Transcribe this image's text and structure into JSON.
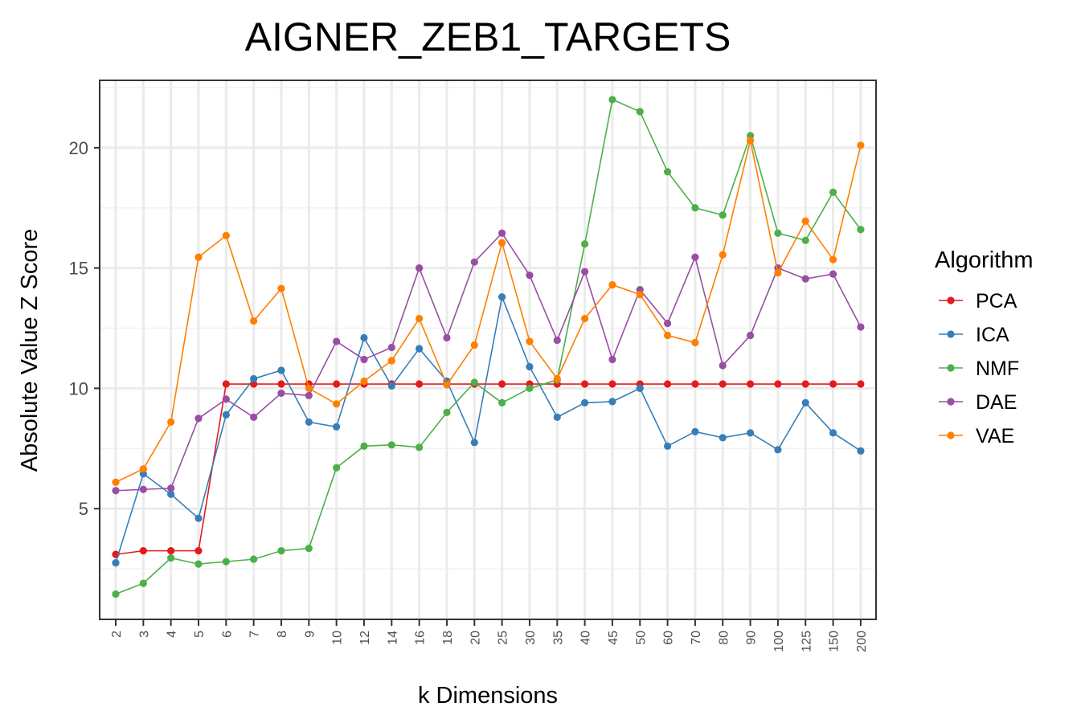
{
  "chart_data": {
    "type": "line",
    "title": "AIGNER_ZEB1_TARGETS",
    "xlabel": "k Dimensions",
    "ylabel": "Absolute Value Z Score",
    "categories": [
      "2",
      "3",
      "4",
      "5",
      "6",
      "7",
      "8",
      "9",
      "10",
      "12",
      "14",
      "16",
      "18",
      "20",
      "25",
      "30",
      "35",
      "40",
      "45",
      "50",
      "60",
      "70",
      "80",
      "90",
      "100",
      "125",
      "150",
      "200"
    ],
    "ylim": [
      0.4,
      22.8
    ],
    "yticks": [
      5,
      10,
      15,
      20
    ],
    "grid": true,
    "legend": {
      "title": "Algorithm",
      "placement": "right"
    },
    "series": [
      {
        "name": "PCA",
        "color": "#e41a1c",
        "values": [
          3.1,
          3.25,
          3.25,
          3.25,
          10.18,
          10.18,
          10.18,
          10.18,
          10.18,
          10.18,
          10.18,
          10.18,
          10.18,
          10.18,
          10.18,
          10.18,
          10.18,
          10.18,
          10.18,
          10.18,
          10.18,
          10.18,
          10.18,
          10.18,
          10.18,
          10.18,
          10.18,
          10.18
        ]
      },
      {
        "name": "ICA",
        "color": "#377eb8",
        "values": [
          2.75,
          6.45,
          5.6,
          4.6,
          8.9,
          10.4,
          10.75,
          8.6,
          8.4,
          12.1,
          10.1,
          11.65,
          10.3,
          7.75,
          13.8,
          10.9,
          8.8,
          9.4,
          9.45,
          10.0,
          7.6,
          8.2,
          7.95,
          8.15,
          7.45,
          9.4,
          8.15,
          7.4
        ]
      },
      {
        "name": "NMF",
        "color": "#4daf4a",
        "values": [
          1.45,
          1.9,
          2.95,
          2.7,
          2.8,
          2.9,
          3.25,
          3.35,
          6.7,
          7.6,
          7.65,
          7.55,
          9.0,
          10.25,
          9.4,
          10.0,
          10.35,
          16.0,
          22.0,
          21.5,
          19.0,
          17.5,
          17.2,
          20.5,
          16.45,
          16.15,
          18.15,
          16.6
        ]
      },
      {
        "name": "DAE",
        "color": "#984ea3",
        "values": [
          5.75,
          5.8,
          5.85,
          8.75,
          9.55,
          8.8,
          9.8,
          9.7,
          11.95,
          11.2,
          11.7,
          15.0,
          12.1,
          15.25,
          16.45,
          14.7,
          12.0,
          14.85,
          11.2,
          14.1,
          12.7,
          15.45,
          10.95,
          12.2,
          15.0,
          14.55,
          14.75,
          12.55
        ]
      },
      {
        "name": "VAE",
        "color": "#ff7f00",
        "values": [
          6.1,
          6.65,
          8.6,
          15.45,
          16.35,
          12.8,
          14.15,
          10.0,
          9.35,
          10.3,
          11.15,
          12.9,
          10.15,
          11.8,
          16.05,
          11.95,
          10.4,
          12.9,
          14.3,
          13.9,
          12.2,
          11.9,
          15.55,
          20.3,
          14.8,
          16.95,
          15.35,
          20.1
        ]
      }
    ]
  }
}
